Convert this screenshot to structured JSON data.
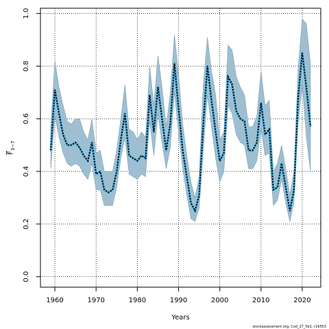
{
  "chart_data": {
    "type": "line",
    "xlabel": "Years",
    "ylabel": "F",
    "ylabel_subscript": "3−7",
    "xlim": [
      1956.5,
      2024.5
    ],
    "ylim": [
      -0.04,
      1.02
    ],
    "xticks": [
      1960,
      1970,
      1980,
      1990,
      2000,
      2010,
      2020
    ],
    "yticks": [
      0.0,
      0.2,
      0.4,
      0.6,
      0.8,
      1.0
    ],
    "ytick_labels": [
      "0.0",
      "0.2",
      "0.4",
      "0.6",
      "0.8",
      "1.0"
    ],
    "grid": true,
    "colors": {
      "band": "#9ebfd1",
      "band_edge": "#7a9fb3",
      "line": "#000000",
      "line_outline": "#3aa6d9"
    },
    "series": [
      {
        "role": "estimate",
        "x": [
          1959,
          1960,
          1961,
          1962,
          1963,
          1964,
          1965,
          1966,
          1967,
          1968,
          1969,
          1970,
          1971,
          1972,
          1973,
          1974,
          1975,
          1976,
          1977,
          1978,
          1979,
          1980,
          1981,
          1982,
          1983,
          1984,
          1985,
          1986,
          1987,
          1988,
          1989,
          1990,
          1991,
          1992,
          1993,
          1994,
          1995,
          1996,
          1997,
          1998,
          1999,
          2000,
          2001,
          2002,
          2003,
          2004,
          2005,
          2006,
          2007,
          2008,
          2009,
          2010,
          2011,
          2012,
          2013,
          2014,
          2015,
          2016,
          2017,
          2018,
          2019,
          2020,
          2021,
          2022
        ],
        "y": [
          0.48,
          0.71,
          0.62,
          0.54,
          0.5,
          0.5,
          0.51,
          0.49,
          0.46,
          0.44,
          0.51,
          0.39,
          0.4,
          0.33,
          0.32,
          0.33,
          0.4,
          0.52,
          0.62,
          0.46,
          0.45,
          0.44,
          0.46,
          0.45,
          0.69,
          0.55,
          0.72,
          0.6,
          0.48,
          0.58,
          0.81,
          0.64,
          0.48,
          0.38,
          0.28,
          0.25,
          0.31,
          0.58,
          0.8,
          0.67,
          0.55,
          0.44,
          0.47,
          0.76,
          0.73,
          0.63,
          0.6,
          0.59,
          0.48,
          0.48,
          0.51,
          0.66,
          0.54,
          0.56,
          0.33,
          0.34,
          0.43,
          0.34,
          0.25,
          0.33,
          0.68,
          0.85,
          0.72,
          0.57
        ]
      },
      {
        "role": "ci_upper",
        "y": [
          0.57,
          0.82,
          0.72,
          0.65,
          0.59,
          0.58,
          0.6,
          0.6,
          0.55,
          0.52,
          0.6,
          0.47,
          0.48,
          0.4,
          0.4,
          0.4,
          0.48,
          0.6,
          0.73,
          0.56,
          0.55,
          0.52,
          0.55,
          0.53,
          0.8,
          0.65,
          0.84,
          0.72,
          0.57,
          0.7,
          0.92,
          0.77,
          0.58,
          0.46,
          0.36,
          0.3,
          0.38,
          0.73,
          0.91,
          0.78,
          0.69,
          0.52,
          0.55,
          0.88,
          0.86,
          0.76,
          0.72,
          0.69,
          0.57,
          0.57,
          0.61,
          0.78,
          0.65,
          0.67,
          0.4,
          0.43,
          0.5,
          0.41,
          0.31,
          0.4,
          0.79,
          0.98,
          0.96,
          0.81
        ]
      },
      {
        "role": "ci_lower",
        "y": [
          0.41,
          0.61,
          0.53,
          0.47,
          0.43,
          0.42,
          0.43,
          0.42,
          0.39,
          0.37,
          0.43,
          0.33,
          0.33,
          0.27,
          0.27,
          0.27,
          0.34,
          0.45,
          0.53,
          0.39,
          0.38,
          0.37,
          0.39,
          0.38,
          0.59,
          0.46,
          0.62,
          0.51,
          0.41,
          0.49,
          0.7,
          0.55,
          0.41,
          0.31,
          0.22,
          0.21,
          0.26,
          0.48,
          0.69,
          0.57,
          0.45,
          0.36,
          0.4,
          0.65,
          0.62,
          0.54,
          0.51,
          0.5,
          0.41,
          0.41,
          0.44,
          0.56,
          0.46,
          0.47,
          0.27,
          0.29,
          0.37,
          0.28,
          0.21,
          0.28,
          0.58,
          0.73,
          0.53,
          0.4
        ]
      }
    ]
  },
  "footer": "stockassessment.org, Cod_27_5b1, r16553"
}
